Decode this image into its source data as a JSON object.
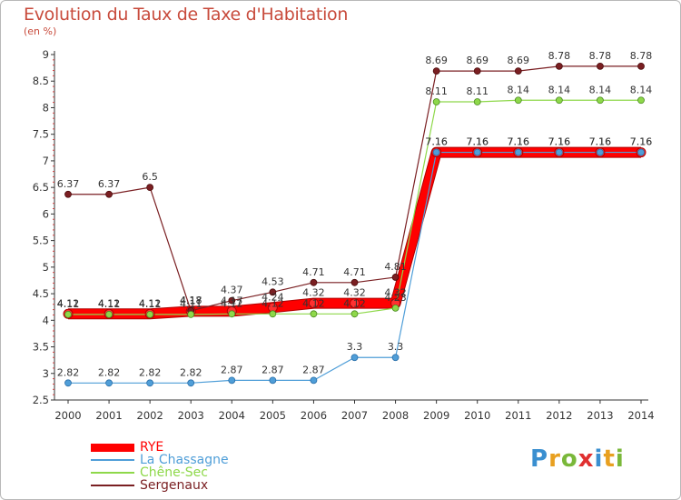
{
  "title": "Evolution du Taux de Taxe d'Habitation",
  "subtitle": "(en %)",
  "logo": "Proxiti",
  "chart_data": {
    "type": "line",
    "x": [
      "2000",
      "2001",
      "2002",
      "2003",
      "2004",
      "2005",
      "2006",
      "2007",
      "2008",
      "2009",
      "2010",
      "2011",
      "2012",
      "2013",
      "2014"
    ],
    "ylim": [
      2.5,
      9
    ],
    "yticks": [
      "2.5",
      "3",
      "3.5",
      "4",
      "4.5",
      "5",
      "5.5",
      "6",
      "6.5",
      "7",
      "7.5",
      "8",
      "8.5",
      "9"
    ],
    "grid": false,
    "legend_position": "bottom-left",
    "series": [
      {
        "name": "RYE",
        "color": "#ff0000",
        "values": [
          4.12,
          4.12,
          4.12,
          4.17,
          4.17,
          4.24,
          4.32,
          4.32,
          4.32,
          7.16,
          7.16,
          7.16,
          7.16,
          7.16,
          7.16
        ],
        "labels": [
          "4.12",
          "4.12",
          "4.12",
          "4.17",
          "4.17",
          "4.24",
          "4.32",
          "4.32",
          "4.32",
          "7.16",
          "7.16",
          "7.16",
          "7.16",
          "7.16",
          "7.16"
        ]
      },
      {
        "name": "La Chassagne",
        "color": "#4f9ed8",
        "values": [
          2.82,
          2.82,
          2.82,
          2.82,
          2.87,
          2.87,
          2.87,
          3.3,
          3.3,
          7.16,
          7.16,
          7.16,
          7.16,
          7.16,
          7.16
        ],
        "labels": [
          "2.82",
          "2.82",
          "2.82",
          "2.82",
          "2.87",
          "2.87",
          "2.87",
          "3.3",
          "3.3",
          "7.16",
          "7.16",
          "7.16",
          "7.16",
          "7.16",
          "7.16"
        ]
      },
      {
        "name": "Chêne-Sec",
        "color": "#8ed84a",
        "values": [
          4.11,
          4.11,
          4.11,
          4.11,
          4.12,
          4.12,
          4.12,
          4.12,
          4.23,
          8.11,
          8.11,
          8.14,
          8.14,
          8.14,
          8.14
        ],
        "labels": [
          "4.11",
          "4.11",
          "4.11",
          "4.11",
          "4.12",
          "4.12",
          "4.12",
          "4.12",
          "4.23",
          "8.11",
          "8.11",
          "8.14",
          "8.14",
          "8.14",
          "8.14"
        ]
      },
      {
        "name": "Sergenaux",
        "color": "#7a1f22",
        "values": [
          6.37,
          6.37,
          6.5,
          4.18,
          4.37,
          4.53,
          4.71,
          4.71,
          4.81,
          8.69,
          8.69,
          8.69,
          8.78,
          8.78,
          8.78
        ],
        "labels": [
          "6.37",
          "6.37",
          "6.5",
          "4.18",
          "4.37",
          "4.53",
          "4.71",
          "4.71",
          "4.81",
          "8.69",
          "8.69",
          "8.69",
          "8.78",
          "8.78",
          "8.78"
        ]
      }
    ]
  }
}
